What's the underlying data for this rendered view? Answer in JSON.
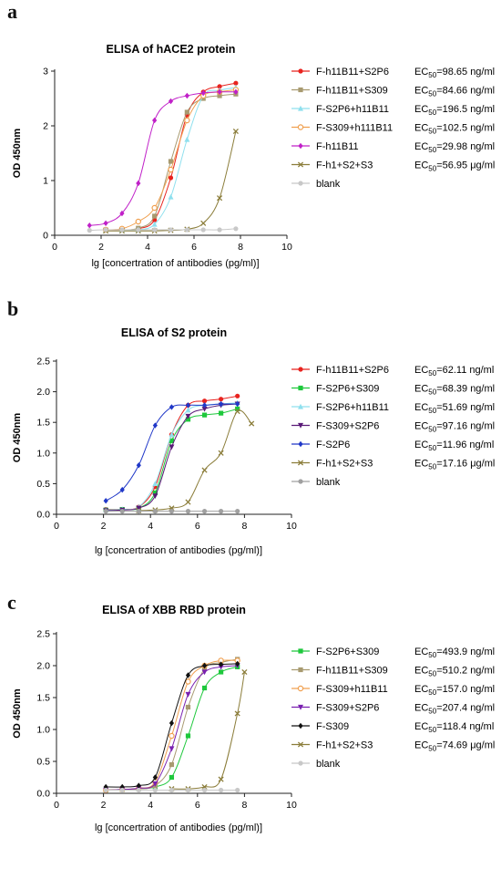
{
  "chart_data": [
    {
      "type": "scatter",
      "panel_label": "a",
      "title": "ELISA of hACE2 protein",
      "xlabel": "lg [concertration of antibodies (pg/ml)]",
      "ylabel": "OD 450nm",
      "xlim": [
        0,
        10
      ],
      "ylim": [
        0,
        3
      ],
      "xticks": [
        "0",
        "2",
        "4",
        "6",
        "8",
        "10"
      ],
      "yticks": [
        "0",
        "1",
        "2",
        "3"
      ],
      "series": [
        {
          "name": "F-h11B11+S2P6",
          "ec50_value": "98.65",
          "ec50_unit": "ng/ml",
          "color": "#e8231f",
          "marker": "circle",
          "x": [
            2.2,
            2.9,
            3.6,
            4.3,
            5.0,
            5.7,
            6.4,
            7.1,
            7.8
          ],
          "y": [
            0.1,
            0.1,
            0.12,
            0.28,
            1.05,
            2.2,
            2.62,
            2.72,
            2.78
          ]
        },
        {
          "name": "F-h11B11+S309",
          "ec50_value": "84.66",
          "ec50_unit": "ng/ml",
          "color": "#a89a70",
          "marker": "square",
          "x": [
            2.2,
            2.9,
            3.6,
            4.3,
            5.0,
            5.7,
            6.4,
            7.1,
            7.8
          ],
          "y": [
            0.1,
            0.1,
            0.13,
            0.35,
            1.35,
            2.25,
            2.5,
            2.55,
            2.58
          ]
        },
        {
          "name": "F-S2P6+h11B11",
          "ec50_value": "196.5",
          "ec50_unit": "ng/ml",
          "color": "#8fe0ee",
          "marker": "triangle",
          "x": [
            2.2,
            2.9,
            3.6,
            4.3,
            5.0,
            5.7,
            6.4,
            7.1,
            7.8
          ],
          "y": [
            0.1,
            0.1,
            0.1,
            0.2,
            0.7,
            1.75,
            2.55,
            2.65,
            2.7
          ]
        },
        {
          "name": "F-S309+h111B11",
          "ec50_value": "102.5",
          "ec50_unit": "ng/ml",
          "color": "#f0a050",
          "marker": "open-circle",
          "x": [
            2.2,
            2.9,
            3.6,
            4.3,
            5.0,
            5.7,
            6.4,
            7.1,
            7.8
          ],
          "y": [
            0.1,
            0.12,
            0.25,
            0.5,
            1.2,
            2.1,
            2.55,
            2.62,
            2.66
          ]
        },
        {
          "name": "F-h11B11",
          "ec50_value": "29.98",
          "ec50_unit": "ng/ml",
          "color": "#c020c8",
          "marker": "diamond",
          "x": [
            1.5,
            2.2,
            2.9,
            3.6,
            4.3,
            5.0,
            5.7,
            6.4,
            7.1,
            7.8
          ],
          "y": [
            0.18,
            0.22,
            0.4,
            0.95,
            2.1,
            2.45,
            2.55,
            2.6,
            2.62,
            2.62
          ]
        },
        {
          "name": "F-h1+S2+S3",
          "ec50_value": "56.95",
          "ec50_unit": "μg/ml",
          "color": "#8b7d3a",
          "marker": "x",
          "x": [
            2.2,
            2.9,
            3.6,
            4.3,
            5.0,
            5.7,
            6.4,
            7.1,
            7.8
          ],
          "y": [
            0.08,
            0.08,
            0.08,
            0.08,
            0.09,
            0.11,
            0.22,
            0.68,
            1.9
          ]
        },
        {
          "name": "blank",
          "ec50_value": "",
          "ec50_unit": "",
          "color": "#c8c8c8",
          "marker": "circle",
          "x": [
            1.5,
            2.2,
            2.9,
            3.6,
            4.3,
            5.0,
            5.7,
            6.4,
            7.1,
            7.8
          ],
          "y": [
            0.09,
            0.1,
            0.1,
            0.1,
            0.1,
            0.1,
            0.1,
            0.1,
            0.1,
            0.12
          ]
        }
      ]
    },
    {
      "type": "scatter",
      "panel_label": "b",
      "title": "ELISA of S2 protein",
      "xlabel": "lg [concertration of antibodies (pg/ml)]",
      "ylabel": "OD 450nm",
      "xlim": [
        0,
        10
      ],
      "ylim": [
        0,
        2.5
      ],
      "xticks": [
        "0",
        "2",
        "4",
        "6",
        "8",
        "10"
      ],
      "yticks": [
        "0.0",
        "0.5",
        "1.0",
        "1.5",
        "2.0",
        "2.5"
      ],
      "series": [
        {
          "name": "F-h11B11+S2P6",
          "ec50_value": "62.11",
          "ec50_unit": "ng/ml",
          "color": "#e8231f",
          "marker": "circle",
          "x": [
            2.1,
            2.8,
            3.5,
            4.2,
            4.9,
            5.6,
            6.3,
            7.0,
            7.7
          ],
          "y": [
            0.08,
            0.08,
            0.12,
            0.45,
            1.3,
            1.78,
            1.85,
            1.88,
            1.93
          ]
        },
        {
          "name": "F-S2P6+S309",
          "ec50_value": "68.39",
          "ec50_unit": "ng/ml",
          "color": "#1ec83c",
          "marker": "square",
          "x": [
            2.1,
            2.8,
            3.5,
            4.2,
            4.9,
            5.6,
            6.3,
            7.0,
            7.7
          ],
          "y": [
            0.07,
            0.08,
            0.1,
            0.35,
            1.2,
            1.55,
            1.62,
            1.65,
            1.72
          ]
        },
        {
          "name": "F-S2P6+h11B11",
          "ec50_value": "51.69",
          "ec50_unit": "ng/ml",
          "color": "#8fe0ee",
          "marker": "triangle",
          "x": [
            2.1,
            2.8,
            3.5,
            4.2,
            4.9,
            5.6,
            6.3,
            7.0,
            7.7
          ],
          "y": [
            0.07,
            0.08,
            0.12,
            0.5,
            1.3,
            1.7,
            1.78,
            1.8,
            1.82
          ]
        },
        {
          "name": "F-S309+S2P6",
          "ec50_value": "97.16",
          "ec50_unit": "ng/ml",
          "color": "#5a1a78",
          "marker": "inv-triangle",
          "x": [
            2.1,
            2.8,
            3.5,
            4.2,
            4.9,
            5.6,
            6.3,
            7.0,
            7.7
          ],
          "y": [
            0.06,
            0.07,
            0.1,
            0.3,
            1.1,
            1.6,
            1.72,
            1.78,
            1.8
          ]
        },
        {
          "name": "F-S2P6",
          "ec50_value": "11.96",
          "ec50_unit": "ng/ml",
          "color": "#2038c8",
          "marker": "diamond",
          "x": [
            2.1,
            2.8,
            3.5,
            4.2,
            4.9,
            5.6,
            6.3,
            7.0,
            7.7
          ],
          "y": [
            0.22,
            0.4,
            0.8,
            1.45,
            1.75,
            1.78,
            1.78,
            1.8,
            1.8
          ]
        },
        {
          "name": "F-h1+S2+S3",
          "ec50_value": "17.16",
          "ec50_unit": "μg/ml",
          "color": "#8b7d3a",
          "marker": "x",
          "x": [
            3.5,
            4.2,
            4.9,
            5.6,
            6.3,
            7.0,
            7.7,
            8.3
          ],
          "y": [
            0.06,
            0.07,
            0.1,
            0.2,
            0.72,
            1.0,
            1.68,
            1.48
          ]
        },
        {
          "name": "blank",
          "ec50_value": "",
          "ec50_unit": "",
          "color": "#a0a0a0",
          "marker": "circle",
          "x": [
            2.1,
            2.8,
            3.5,
            4.2,
            4.9,
            5.6,
            6.3,
            7.0,
            7.7
          ],
          "y": [
            0.05,
            0.05,
            0.05,
            0.05,
            0.05,
            0.05,
            0.05,
            0.05,
            0.05
          ]
        }
      ]
    },
    {
      "type": "scatter",
      "panel_label": "c",
      "title": "ELISA of XBB RBD protein",
      "xlabel": "lg [concertration of antibodies (pg/ml)]",
      "ylabel": "OD 450nm",
      "xlim": [
        0,
        10
      ],
      "ylim": [
        0,
        2.5
      ],
      "xticks": [
        "0",
        "2",
        "4",
        "6",
        "8",
        "10"
      ],
      "yticks": [
        "0.0",
        "0.5",
        "1.0",
        "1.5",
        "2.0",
        "2.5"
      ],
      "series": [
        {
          "name": "F-S2P6+S309",
          "ec50_value": "493.9",
          "ec50_unit": "ng/ml",
          "color": "#1ec83c",
          "marker": "square",
          "x": [
            2.1,
            2.8,
            3.5,
            4.2,
            4.9,
            5.6,
            6.3,
            7.0,
            7.7
          ],
          "y": [
            0.05,
            0.06,
            0.07,
            0.1,
            0.25,
            0.9,
            1.65,
            1.9,
            1.98
          ]
        },
        {
          "name": "F-h11B11+S309",
          "ec50_value": "510.2",
          "ec50_unit": "ng/ml",
          "color": "#a89a70",
          "marker": "square",
          "x": [
            2.1,
            2.8,
            3.5,
            4.2,
            4.9,
            5.6,
            6.3,
            7.0,
            7.7
          ],
          "y": [
            0.05,
            0.06,
            0.07,
            0.12,
            0.45,
            1.35,
            1.95,
            2.05,
            2.1
          ]
        },
        {
          "name": "F-S309+h11B11",
          "ec50_value": "157.0",
          "ec50_unit": "ng/ml",
          "color": "#f0a050",
          "marker": "open-circle",
          "x": [
            2.1,
            2.8,
            3.5,
            4.2,
            4.9,
            5.6,
            6.3,
            7.0,
            7.7
          ],
          "y": [
            0.05,
            0.06,
            0.08,
            0.18,
            0.9,
            1.75,
            2.0,
            2.08,
            2.08
          ]
        },
        {
          "name": "F-S309+S2P6",
          "ec50_value": "207.4",
          "ec50_unit": "ng/ml",
          "color": "#7a20b0",
          "marker": "inv-triangle",
          "x": [
            2.1,
            2.8,
            3.5,
            4.2,
            4.9,
            5.6,
            6.3,
            7.0,
            7.7
          ],
          "y": [
            0.05,
            0.06,
            0.08,
            0.15,
            0.7,
            1.55,
            1.9,
            1.98,
            2.0
          ]
        },
        {
          "name": "F-S309",
          "ec50_value": "118.4",
          "ec50_unit": "ng/ml",
          "color": "#111111",
          "marker": "diamond",
          "x": [
            2.1,
            2.8,
            3.5,
            4.2,
            4.9,
            5.6,
            6.3,
            7.0,
            7.7
          ],
          "y": [
            0.1,
            0.1,
            0.12,
            0.25,
            1.1,
            1.85,
            2.0,
            2.02,
            2.03
          ]
        },
        {
          "name": "F-h1+S2+S3",
          "ec50_value": "74.69",
          "ec50_unit": "μg/ml",
          "color": "#8b7d3a",
          "marker": "x",
          "x": [
            4.9,
            5.6,
            6.3,
            7.0,
            7.7,
            8.0
          ],
          "y": [
            0.07,
            0.07,
            0.1,
            0.22,
            1.25,
            1.9
          ]
        },
        {
          "name": "blank",
          "ec50_value": "",
          "ec50_unit": "",
          "color": "#c8c8c8",
          "marker": "circle",
          "x": [
            2.1,
            2.8,
            3.5,
            4.2,
            4.9,
            5.6,
            6.3,
            7.0,
            7.7
          ],
          "y": [
            0.05,
            0.05,
            0.05,
            0.05,
            0.05,
            0.05,
            0.05,
            0.05,
            0.05
          ]
        }
      ]
    }
  ]
}
